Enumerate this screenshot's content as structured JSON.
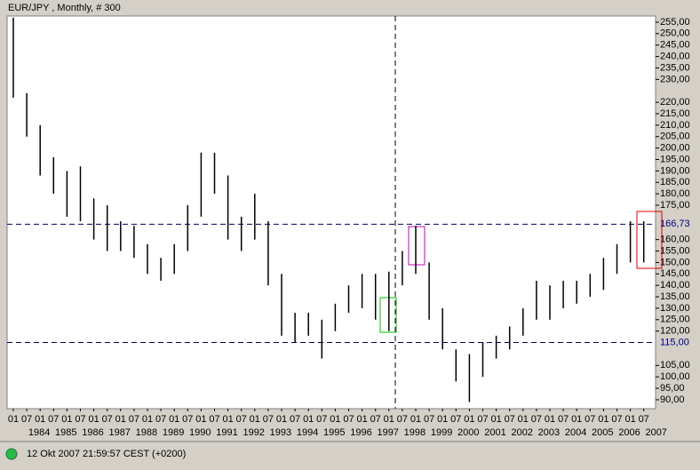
{
  "chart_data": {
    "type": "range-bar",
    "title": "EUR/JPY , Monthly, # 300",
    "status": "12 Okt 2007 21:59:57  CEST (+0200)",
    "categories": [
      "01",
      "07",
      "01",
      "07",
      "01",
      "07",
      "01",
      "07",
      "01",
      "07",
      "01",
      "07",
      "01",
      "07",
      "01",
      "07",
      "01",
      "07",
      "01",
      "07",
      "01",
      "07",
      "01",
      "07",
      "01",
      "07",
      "01",
      "07",
      "01",
      "07",
      "01",
      "07",
      "01",
      "07",
      "01",
      "07",
      "01",
      "07",
      "01",
      "07",
      "01",
      "07",
      "01",
      "07",
      "01",
      "07",
      "01",
      "07"
    ],
    "years": [
      "1984",
      "1985",
      "1986",
      "1987",
      "1988",
      "1989",
      "1990",
      "1991",
      "1992",
      "1993",
      "1994",
      "1995",
      "1996",
      "1997",
      "1998",
      "1999",
      "2000",
      "2001",
      "2002",
      "2003",
      "2004",
      "2005",
      "2006",
      "2007"
    ],
    "highs": [
      257,
      224,
      210,
      196,
      190,
      192,
      178,
      175,
      168,
      166,
      158,
      152,
      158,
      175,
      198,
      198,
      188,
      170,
      180,
      168,
      145,
      128,
      128,
      125,
      132,
      140,
      145,
      145,
      146,
      155,
      166,
      150,
      130,
      112,
      110,
      115,
      118,
      122,
      130,
      142,
      140,
      142,
      142,
      145,
      152,
      158,
      168,
      168
    ],
    "lows": [
      222,
      205,
      188,
      180,
      170,
      168,
      160,
      155,
      155,
      152,
      145,
      142,
      145,
      155,
      170,
      180,
      160,
      155,
      160,
      140,
      118,
      115,
      118,
      108,
      120,
      128,
      130,
      125,
      120,
      140,
      145,
      125,
      112,
      98,
      89,
      100,
      108,
      112,
      118,
      125,
      125,
      130,
      132,
      135,
      138,
      145,
      150,
      150
    ],
    "color": "#000000",
    "ylim": [
      86.1,
      257.7
    ],
    "yticks": [
      {
        "value": 255,
        "label": "255,00"
      },
      {
        "value": 250,
        "label": "250,00"
      },
      {
        "value": 245,
        "label": "245,00"
      },
      {
        "value": 240,
        "label": "240,00"
      },
      {
        "value": 235,
        "label": "235,00"
      },
      {
        "value": 230,
        "label": "230,00"
      },
      {
        "value": 220,
        "label": "220,00"
      },
      {
        "value": 215,
        "label": "215,00"
      },
      {
        "value": 210,
        "label": "210,00"
      },
      {
        "value": 205,
        "label": "205,00"
      },
      {
        "value": 200,
        "label": "200,00"
      },
      {
        "value": 195,
        "label": "195,00"
      },
      {
        "value": 190,
        "label": "190,00"
      },
      {
        "value": 185,
        "label": "185,00"
      },
      {
        "value": 180,
        "label": "180,00"
      },
      {
        "value": 175,
        "label": "175,00"
      },
      {
        "value": 160,
        "label": "160,00"
      },
      {
        "value": 155,
        "label": "155,00"
      },
      {
        "value": 150,
        "label": "150,00"
      },
      {
        "value": 145,
        "label": "145,00"
      },
      {
        "value": 140,
        "label": "140,00"
      },
      {
        "value": 135,
        "label": "135,00"
      },
      {
        "value": 130,
        "label": "130,00"
      },
      {
        "value": 125,
        "label": "125,00"
      },
      {
        "value": 120,
        "label": "120,00"
      },
      {
        "value": 105,
        "label": "105,00"
      },
      {
        "value": 100,
        "label": "100,00"
      },
      {
        "value": 95,
        "label": "95,00"
      },
      {
        "value": 90,
        "label": "90,00"
      }
    ],
    "ref_lines": [
      {
        "value": 166.73,
        "label": "166,73"
      },
      {
        "value": 115,
        "label": "115,00"
      }
    ]
  }
}
